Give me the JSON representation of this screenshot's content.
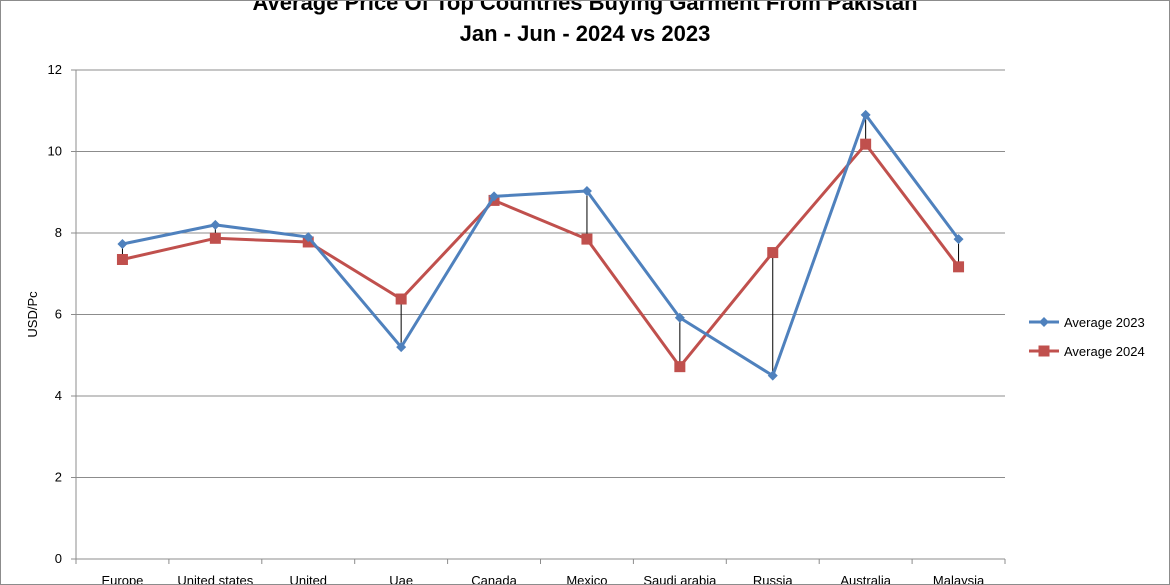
{
  "chart_data": {
    "type": "line",
    "title_lines": [
      "Average Price Of Top Countries Buying Garment From Pakistan",
      "Jan - Jun - 2024 vs 2023"
    ],
    "ylabel": "USD/Pc",
    "xlabel": "",
    "ylim": [
      0,
      12
    ],
    "yticks": [
      0,
      2,
      4,
      6,
      8,
      10,
      12
    ],
    "grid": true,
    "legend_position": "right",
    "categories": [
      "Europe",
      "United states",
      "United",
      "Uae",
      "Canada",
      "Mexico",
      "Saudi arabia",
      "Russia",
      "Australia",
      "Malaysia"
    ],
    "series": [
      {
        "name": "Average 2023",
        "color": "#4f81bd",
        "marker": "diamond",
        "values": [
          7.73,
          8.2,
          7.9,
          5.2,
          8.9,
          9.03,
          5.92,
          4.5,
          10.9,
          7.85
        ]
      },
      {
        "name": "Average 2024",
        "color": "#c0504d",
        "marker": "square",
        "values": [
          7.35,
          7.87,
          7.78,
          6.38,
          8.8,
          7.85,
          4.72,
          7.52,
          10.18,
          7.17
        ]
      }
    ],
    "drop_lines": true,
    "colors": {
      "gridline": "#8c8c8c",
      "axis": "#8c8c8c",
      "drop_line": "#000000"
    }
  }
}
